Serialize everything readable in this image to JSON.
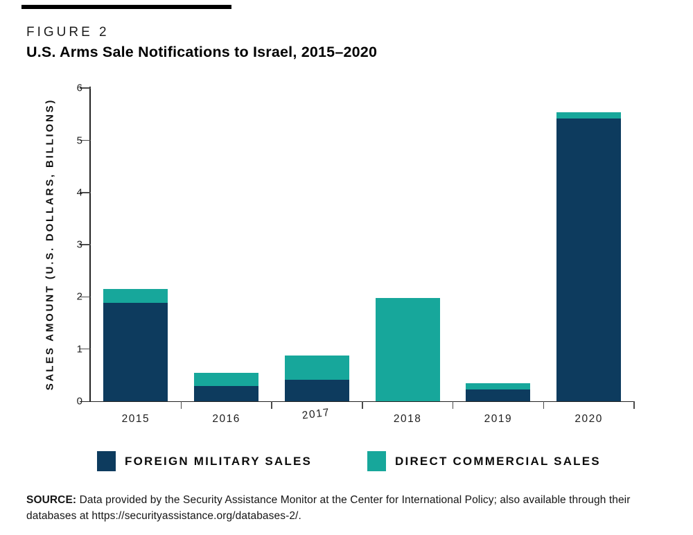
{
  "figure": {
    "kicker": "FIGURE 2",
    "title": "U.S. Arms Sale Notifications to Israel, 2015–2020"
  },
  "chart_data": {
    "type": "bar",
    "stacked": true,
    "title": "U.S. Arms Sale Notifications to Israel, 2015–2020",
    "categories": [
      "2015",
      "2016",
      "2017",
      "2018",
      "2019",
      "2020"
    ],
    "series": [
      {
        "name": "FOREIGN MILITARY SALES",
        "color": "#0d3b5e",
        "values": [
          1.89,
          0.29,
          0.41,
          0,
          0.22,
          5.42
        ]
      },
      {
        "name": "DIRECT COMMERCIAL SALES",
        "color": "#17a79b",
        "values": [
          0.26,
          0.25,
          0.47,
          1.98,
          0.12,
          0.12
        ]
      }
    ],
    "xlabel": "",
    "ylabel": "SALES AMOUNT (U.S. DOLLARS, BILLIONS)",
    "ylim": [
      0,
      6
    ],
    "yticks": [
      0,
      1,
      2,
      3,
      4,
      5,
      6
    ],
    "grid": false,
    "legend_position": "bottom"
  },
  "legend": {
    "items": [
      {
        "label": "FOREIGN MILITARY SALES",
        "color": "#0d3b5e"
      },
      {
        "label": "DIRECT COMMERCIAL SALES",
        "color": "#17a79b"
      }
    ]
  },
  "source": {
    "label": "SOURCE:",
    "text": " Data provided by the Security Assistance Monitor at the Center for International Policy; also available through their databases at https://securityassistance.org/databases-2/."
  }
}
